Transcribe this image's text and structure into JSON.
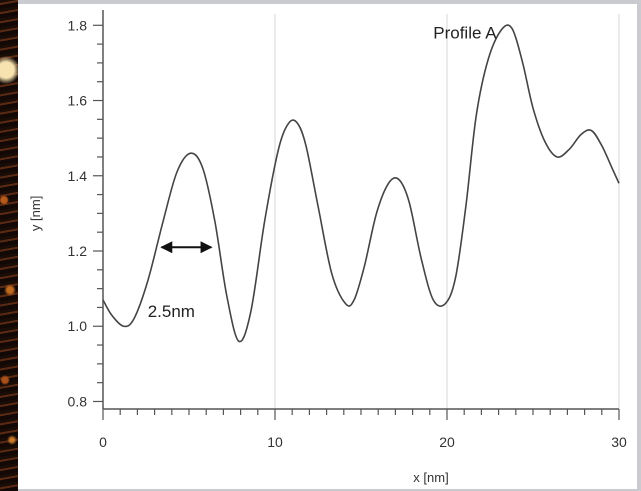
{
  "chart_data": {
    "type": "line",
    "xlabel": "x [nm]",
    "ylabel": "y [nm]",
    "xlim": [
      0,
      30
    ],
    "ylim": [
      0.78,
      1.83
    ],
    "x_ticks": [
      0,
      10,
      20,
      30
    ],
    "y_ticks": [
      0.8,
      1.0,
      1.2,
      1.4,
      1.6,
      1.8
    ],
    "x_tick_labels": [
      "0",
      "10",
      "20",
      "30"
    ],
    "y_tick_labels": [
      "0.8",
      "1.0",
      "1.2",
      "1.4",
      "1.6",
      "1.8"
    ],
    "grid": "vertical",
    "series": [
      {
        "color": "#444444",
        "x": [
          0,
          0.5,
          1.2,
          1.8,
          2.6,
          3.5,
          4.3,
          5.1,
          5.8,
          6.5,
          7.2,
          7.9,
          8.6,
          9.4,
          10.2,
          10.8,
          11.3,
          11.8,
          12.5,
          13.3,
          14.1,
          14.6,
          15.2,
          15.9,
          16.6,
          17.2,
          17.8,
          18.5,
          19.2,
          19.9,
          20.5,
          21.1,
          21.7,
          22.4,
          23.2,
          23.8,
          24.4,
          25.0,
          25.7,
          26.4,
          27.1,
          27.8,
          28.4,
          29.0,
          29.6,
          30.0
        ],
        "y": [
          1.07,
          1.03,
          1.0,
          1.02,
          1.12,
          1.28,
          1.41,
          1.46,
          1.42,
          1.28,
          1.08,
          0.96,
          1.04,
          1.28,
          1.47,
          1.54,
          1.54,
          1.48,
          1.32,
          1.14,
          1.06,
          1.07,
          1.16,
          1.3,
          1.38,
          1.39,
          1.33,
          1.18,
          1.07,
          1.06,
          1.13,
          1.32,
          1.56,
          1.71,
          1.79,
          1.79,
          1.7,
          1.58,
          1.49,
          1.45,
          1.47,
          1.51,
          1.52,
          1.48,
          1.42,
          1.38
        ]
      }
    ],
    "annotations": [
      {
        "text": "Profile A",
        "x": 19.2,
        "y": 1.765
      },
      {
        "text": "2.5nm",
        "x": 2.6,
        "y": 1.025,
        "arrow_x": [
          3.4,
          6.3
        ],
        "arrow_y": 1.21
      }
    ]
  }
}
